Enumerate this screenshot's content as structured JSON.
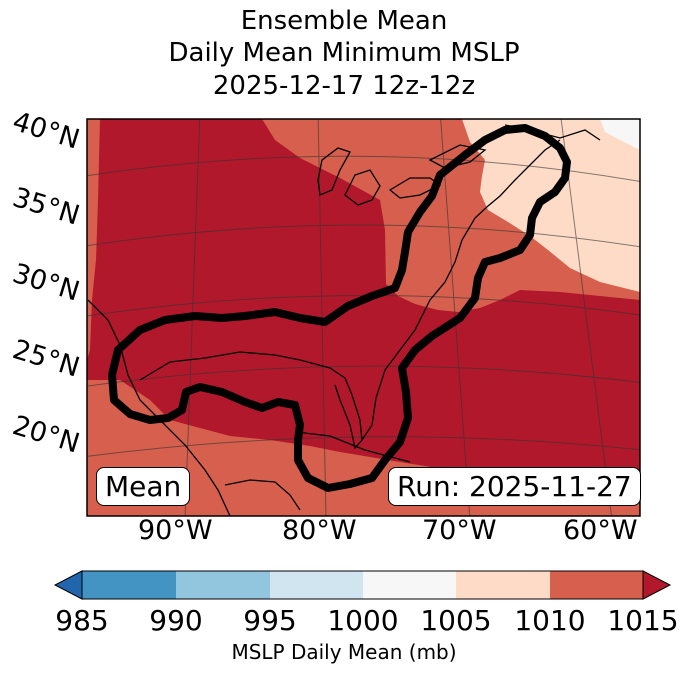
{
  "title": {
    "line1": "Ensemble Mean",
    "line2": "Daily Mean Minimum MSLP",
    "line3": "2025-12-17 12z-12z"
  },
  "map": {
    "latitude_labels": [
      "40°N",
      "35°N",
      "30°N",
      "25°N",
      "20°N"
    ],
    "longitude_labels": [
      "90°W",
      "80°W",
      "70°W",
      "60°W"
    ],
    "left_box": "Mean",
    "right_box": "Run: 2025-11-27"
  },
  "colorbar": {
    "ticks": [
      "985",
      "990",
      "995",
      "1000",
      "1005",
      "1010",
      "1015"
    ],
    "label": "MSLP Daily Mean (mb)",
    "colors": {
      "below_985": "#2166ac",
      "985_990": "#4393c3",
      "990_995": "#92c5de",
      "995_1000": "#d1e5f0",
      "1000_1005": "#f7f7f7",
      "1005_1010": "#fddbc7",
      "1010_1015": "#d6604d",
      "above_1015": "#b2182b"
    }
  }
}
